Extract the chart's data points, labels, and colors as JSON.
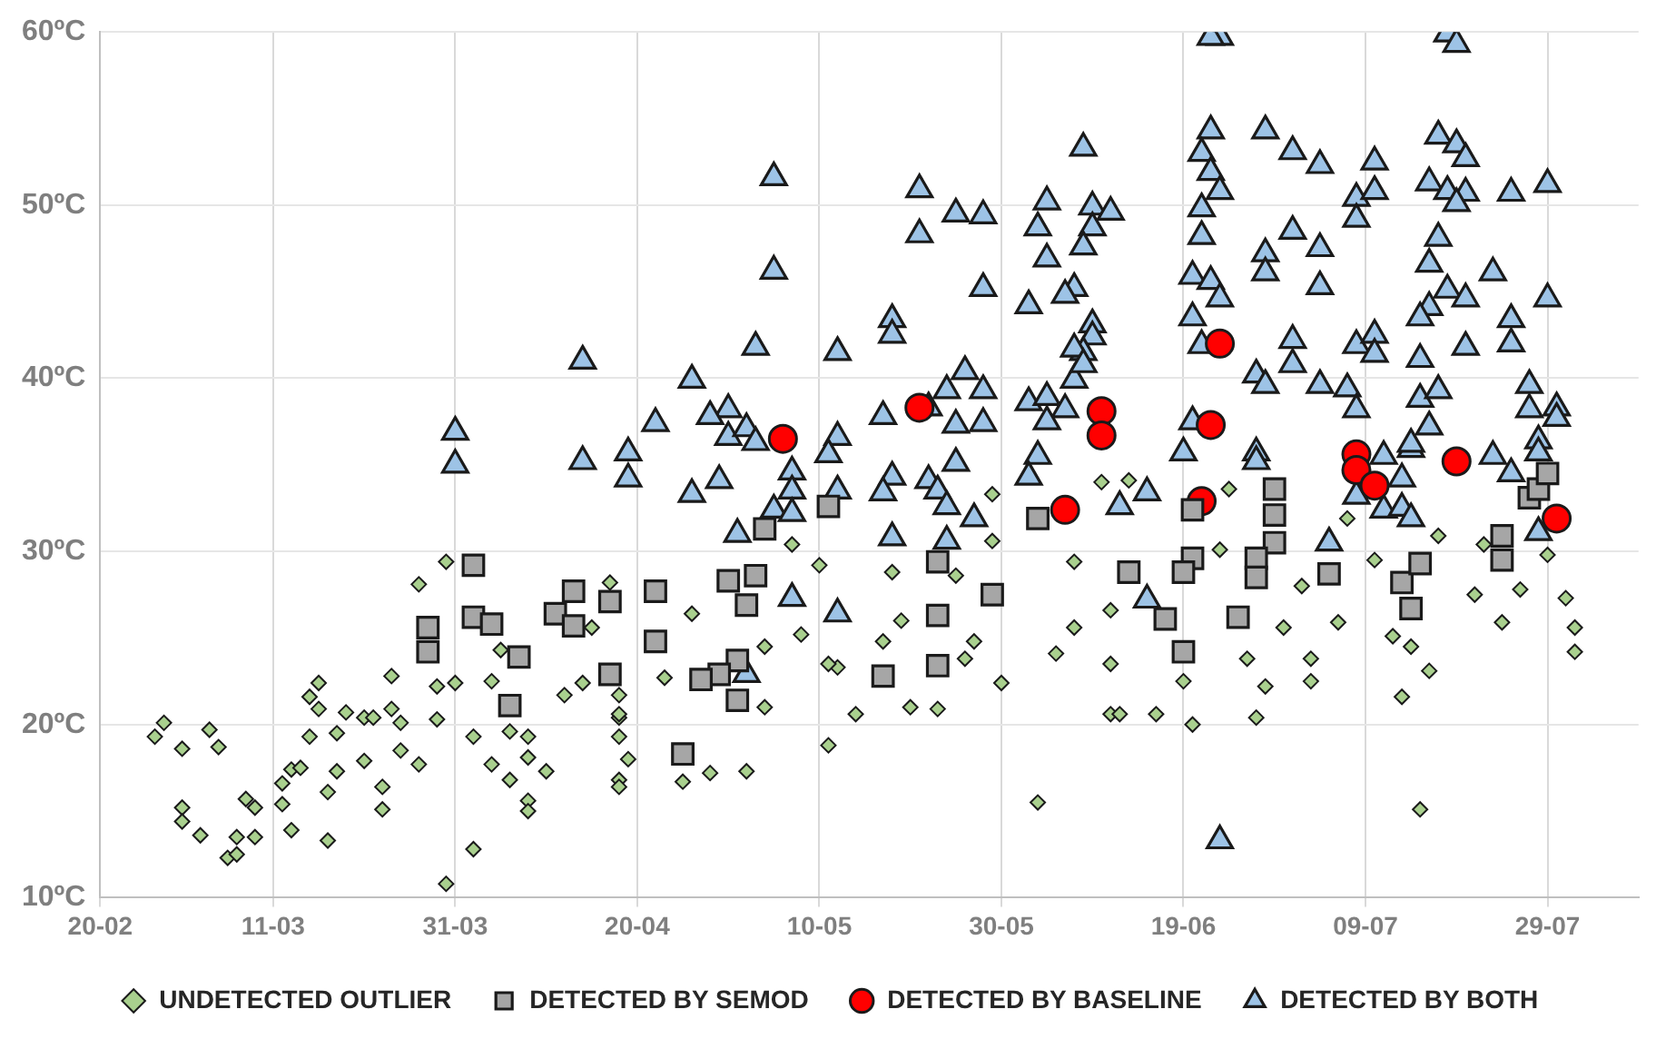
{
  "chart_data": {
    "type": "scatter",
    "legend": "bottom",
    "grid": true,
    "xlim": [
      "--02-20",
      "--08-08"
    ],
    "xticks": [
      {
        "value": "--02-20",
        "label": "20-02"
      },
      {
        "value": "--03-11",
        "label": "11-03"
      },
      {
        "value": "--03-31",
        "label": "31-03"
      },
      {
        "value": "--04-20",
        "label": "20-04"
      },
      {
        "value": "--05-10",
        "label": "10-05"
      },
      {
        "value": "--05-30",
        "label": "30-05"
      },
      {
        "value": "--06-19",
        "label": "19-06"
      },
      {
        "value": "--07-09",
        "label": "09-07"
      },
      {
        "value": "--07-29",
        "label": "29-07"
      }
    ],
    "ylim": [
      10,
      60
    ],
    "yticks": [
      {
        "value": 10,
        "label": "10ºC"
      },
      {
        "value": 20,
        "label": "20ºC"
      },
      {
        "value": 30,
        "label": "30ºC"
      },
      {
        "value": 40,
        "label": "40ºC"
      },
      {
        "value": 50,
        "label": "50ºC"
      },
      {
        "value": 60,
        "label": "60ºC"
      }
    ],
    "series": [
      {
        "name": "UNDETECTED OUTLIER",
        "color": "#a9d08e",
        "marker": "diamond",
        "x": [
          "--02-27",
          "--02-26",
          "--03-01",
          "--03-04",
          "--03-05",
          "--03-01",
          "--03-01",
          "--03-03",
          "--03-06",
          "--03-07",
          "--03-09",
          "--03-07",
          "--03-08",
          "--03-09",
          "--03-13",
          "--03-12",
          "--03-12",
          "--03-13",
          "--03-14",
          "--03-15",
          "--03-16",
          "--03-15",
          "--03-16",
          "--03-17",
          "--03-17",
          "--03-18",
          "--03-19",
          "--03-18",
          "--03-21",
          "--03-22",
          "--03-21",
          "--03-23",
          "--03-23",
          "--03-24",
          "--03-24",
          "--03-25",
          "--03-25",
          "--03-27",
          "--03-27",
          "--03-29",
          "--03-29",
          "--03-30",
          "--03-31",
          "--03-30",
          "--04-02",
          "--04-02",
          "--04-04",
          "--04-05",
          "--04-06",
          "--04-04",
          "--04-06",
          "--04-08",
          "--04-08",
          "--04-08",
          "--04-08",
          "--04-10",
          "--04-12",
          "--04-14",
          "--04-18",
          "--04-18",
          "--04-18",
          "--04-17",
          "--04-15",
          "--04-18",
          "--04-18",
          "--04-19",
          "--04-18",
          "--04-23",
          "--04-25",
          "--04-28",
          "--05-02",
          "--05-04",
          "--05-04",
          "--04-26",
          "--05-07",
          "--05-10",
          "--05-08",
          "--05-11",
          "--05-14",
          "--05-12",
          "--05-11",
          "--05-17",
          "--05-18",
          "--05-19",
          "--05-20",
          "--05-23",
          "--05-26",
          "--05-27",
          "--05-25",
          "--05-29",
          "--05-29",
          "--05-30",
          "--06-03",
          "--06-05",
          "--06-07",
          "--06-07",
          "--06-10",
          "--06-11",
          "--06-11",
          "--06-13",
          "--06-24",
          "--06-23",
          "--06-12",
          "--06-16",
          "--06-20",
          "--06-19",
          "--06-11",
          "--06-28",
          "--06-27",
          "--06-26",
          "--07-03",
          "--07-03",
          "--06-30",
          "--07-02",
          "--07-07",
          "--07-06",
          "--07-10",
          "--07-12",
          "--07-14",
          "--07-16",
          "--07-13",
          "--07-15",
          "--07-17",
          "--07-21",
          "--07-24",
          "--07-26",
          "--07-29",
          "--07-31",
          "--08-01",
          "--08-01",
          "--07-22"
        ],
        "values": [
          20.1,
          19.3,
          18.6,
          19.7,
          18.7,
          15.2,
          14.4,
          13.6,
          12.3,
          12.5,
          13.5,
          13.5,
          15.7,
          15.2,
          13.9,
          15.4,
          16.6,
          17.4,
          17.5,
          19.3,
          22.4,
          21.6,
          20.9,
          16.1,
          13.3,
          19.5,
          20.7,
          17.3,
          20.4,
          20.4,
          17.9,
          15.1,
          16.4,
          22.8,
          20.9,
          20.1,
          18.5,
          17.7,
          28.1,
          20.3,
          22.2,
          29.4,
          22.4,
          10.8,
          19.3,
          12.8,
          22.5,
          24.3,
          19.6,
          17.7,
          16.8,
          18.1,
          19.3,
          15.6,
          15.0,
          17.3,
          21.7,
          22.4,
          20.4,
          16.8,
          21.7,
          28.2,
          25.6,
          20.6,
          19.3,
          18.0,
          16.4,
          22.7,
          16.7,
          17.2,
          17.3,
          21.0,
          24.5,
          26.4,
          30.4,
          29.2,
          25.2,
          18.8,
          20.6,
          23.3,
          23.5,
          24.8,
          28.8,
          26.0,
          21.0,
          20.9,
          23.8,
          24.8,
          28.6,
          33.3,
          30.6,
          22.4,
          15.5,
          24.1,
          25.6,
          29.4,
          34.0,
          26.6,
          20.6,
          34.1,
          33.6,
          30.1,
          20.6,
          20.6,
          20.0,
          22.5,
          23.5,
          22.2,
          20.4,
          23.8,
          22.5,
          23.8,
          25.6,
          28.0,
          31.9,
          25.9,
          29.5,
          25.1,
          24.5,
          23.1,
          21.6,
          15.1,
          30.9,
          27.5,
          25.9,
          27.8,
          29.8,
          27.3,
          25.6,
          24.2,
          30.4
        ]
      },
      {
        "name": "DETECTED BY SEMOD",
        "color": "#a6a6a6",
        "marker": "square",
        "x": [
          "--03-28",
          "--03-28",
          "--04-02",
          "--04-02",
          "--04-04",
          "--04-07",
          "--04-06",
          "--04-11",
          "--04-13",
          "--04-13",
          "--04-17",
          "--04-17",
          "--04-22",
          "--04-22",
          "--04-25",
          "--04-30",
          "--05-03",
          "--05-02",
          "--05-01",
          "--04-29",
          "--04-27",
          "--05-01",
          "--05-04",
          "--05-11",
          "--05-17",
          "--05-23",
          "--05-23",
          "--05-23",
          "--05-29",
          "--06-03",
          "--06-20",
          "--06-13",
          "--06-20",
          "--06-19",
          "--06-17",
          "--06-19",
          "--06-25",
          "--06-29",
          "--06-29",
          "--06-29",
          "--06-27",
          "--06-27",
          "--07-05",
          "--07-13",
          "--07-15",
          "--07-14",
          "--07-24",
          "--07-24",
          "--07-27",
          "--07-28",
          "--07-29"
        ],
        "values": [
          25.6,
          24.2,
          29.2,
          26.2,
          25.8,
          23.9,
          21.1,
          26.4,
          27.7,
          25.7,
          27.1,
          22.9,
          27.7,
          24.8,
          18.3,
          28.3,
          28.6,
          26.9,
          23.7,
          22.9,
          22.6,
          21.4,
          31.3,
          32.6,
          22.8,
          29.4,
          26.3,
          23.4,
          27.5,
          31.9,
          32.4,
          28.8,
          29.6,
          28.8,
          26.1,
          24.2,
          26.2,
          33.6,
          32.1,
          30.5,
          29.6,
          28.5,
          28.7,
          28.2,
          29.3,
          26.7,
          30.9,
          29.5,
          33.1,
          33.6,
          34.5
        ]
      },
      {
        "name": "DETECTED BY BASELINE",
        "color": "#ff0000",
        "marker": "circle",
        "x": [
          "--05-06",
          "--05-21",
          "--06-06",
          "--06-10",
          "--06-10",
          "--06-23",
          "--06-22",
          "--06-21",
          "--07-08",
          "--07-08",
          "--07-10",
          "--07-19",
          "--07-30"
        ],
        "values": [
          36.5,
          38.3,
          32.4,
          38.1,
          36.7,
          42.0,
          37.3,
          32.9,
          35.6,
          34.7,
          33.8,
          35.2,
          31.9
        ]
      },
      {
        "name": "DETECTED BY BOTH",
        "color": "#9dc3e6",
        "marker": "triangle",
        "x": [
          "--03-31",
          "--03-31",
          "--04-14",
          "--04-14",
          "--04-19",
          "--04-19",
          "--04-22",
          "--04-26",
          "--04-26",
          "--04-29",
          "--04-30",
          "--04-28",
          "--04-30",
          "--05-02",
          "--05-03",
          "--05-03",
          "--05-05",
          "--05-05",
          "--05-02",
          "--05-01",
          "--05-05",
          "--05-07",
          "--05-07",
          "--05-07",
          "--05-07",
          "--05-12",
          "--05-12",
          "--05-11",
          "--05-12",
          "--05-12",
          "--05-18",
          "--05-18",
          "--05-17",
          "--05-18",
          "--05-17",
          "--05-18",
          "--05-21",
          "--05-21",
          "--05-22",
          "--05-22",
          "--05-23",
          "--05-25",
          "--05-28",
          "--05-28",
          "--05-26",
          "--05-24",
          "--05-28",
          "--05-25",
          "--05-28",
          "--05-25",
          "--05-24",
          "--05-27",
          "--05-24",
          "--06-02",
          "--06-04",
          "--06-06",
          "--06-04",
          "--06-03",
          "--06-02",
          "--06-02",
          "--06-04",
          "--06-04",
          "--06-03",
          "--06-07",
          "--06-06",
          "--06-08",
          "--06-09",
          "--06-09",
          "--06-08",
          "--06-11",
          "--06-09",
          "--06-09",
          "--06-08",
          "--06-07",
          "--06-07",
          "--06-08",
          "--06-23",
          "--06-22",
          "--06-22",
          "--06-21",
          "--06-22",
          "--06-23",
          "--06-21",
          "--06-21",
          "--06-20",
          "--06-22",
          "--06-23",
          "--06-20",
          "--06-21",
          "--06-20",
          "--06-19",
          "--06-12",
          "--06-15",
          "--06-15",
          "--06-23",
          "--06-28",
          "--07-01",
          "--07-04",
          "--07-01",
          "--07-04",
          "--06-28",
          "--06-28",
          "--07-04",
          "--07-01",
          "--07-01",
          "--06-27",
          "--06-28",
          "--06-27",
          "--06-27",
          "--07-04",
          "--07-07",
          "--07-08",
          "--07-05",
          "--07-10",
          "--07-08",
          "--07-10",
          "--07-08",
          "--07-08",
          "--07-10",
          "--07-10",
          "--07-11",
          "--07-13",
          "--07-14",
          "--07-11",
          "--07-13",
          "--07-14",
          "--07-08",
          "--07-17",
          "--07-19",
          "--07-20",
          "--07-16",
          "--07-18",
          "--07-20",
          "--07-19",
          "--07-25",
          "--07-29",
          "--07-18",
          "--07-19",
          "--07-17",
          "--07-16",
          "--07-23",
          "--07-18",
          "--07-20",
          "--07-16",
          "--07-15",
          "--07-29",
          "--07-25",
          "--07-25",
          "--07-20",
          "--07-15",
          "--07-15",
          "--07-17",
          "--07-16",
          "--07-14",
          "--07-23",
          "--07-25",
          "--07-27",
          "--07-27",
          "--07-30",
          "--07-30",
          "--07-28",
          "--07-28",
          "--07-28"
        ],
        "values": [
          36.9,
          35.0,
          35.2,
          41.0,
          35.7,
          34.2,
          37.4,
          39.9,
          33.3,
          34.1,
          38.2,
          37.8,
          36.6,
          37.1,
          36.3,
          41.8,
          51.6,
          46.2,
          22.9,
          31.0,
          32.4,
          34.6,
          33.5,
          32.2,
          27.3,
          41.5,
          36.6,
          35.6,
          33.5,
          26.4,
          43.4,
          42.5,
          37.8,
          34.3,
          33.4,
          30.8,
          50.9,
          48.3,
          38.3,
          34.1,
          33.5,
          49.5,
          49.4,
          45.2,
          40.4,
          39.3,
          39.3,
          37.3,
          37.4,
          35.1,
          32.6,
          31.9,
          30.6,
          38.6,
          38.9,
          38.2,
          37.5,
          35.5,
          34.3,
          44.2,
          46.9,
          50.2,
          48.7,
          45.2,
          44.8,
          53.3,
          49.9,
          48.7,
          47.6,
          49.6,
          43.1,
          42.4,
          41.5,
          41.7,
          39.9,
          40.8,
          59.7,
          59.7,
          54.3,
          53.0,
          51.9,
          50.8,
          49.8,
          48.2,
          45.9,
          45.6,
          44.6,
          43.5,
          41.9,
          37.5,
          35.7,
          32.6,
          33.4,
          27.2,
          13.3,
          54.3,
          53.1,
          52.3,
          48.5,
          47.5,
          47.2,
          46.1,
          45.3,
          42.2,
          40.8,
          40.2,
          39.6,
          35.7,
          35.2,
          39.6,
          39.4,
          38.2,
          30.5,
          52.5,
          50.4,
          50.8,
          49.2,
          41.9,
          42.5,
          41.4,
          35.5,
          34.2,
          35.9,
          32.4,
          32.5,
          31.9,
          33.2,
          54.0,
          53.5,
          52.7,
          51.3,
          50.8,
          50.7,
          50.1,
          50.7,
          51.2,
          59.9,
          59.3,
          48.1,
          46.6,
          46.1,
          45.1,
          44.6,
          44.1,
          43.5,
          44.6,
          43.4,
          42.0,
          41.8,
          41.1,
          38.8,
          39.3,
          37.2,
          36.2,
          35.5,
          34.5,
          39.6,
          38.2,
          38.3,
          37.7,
          36.4,
          35.7,
          31.1
        ]
      }
    ]
  }
}
